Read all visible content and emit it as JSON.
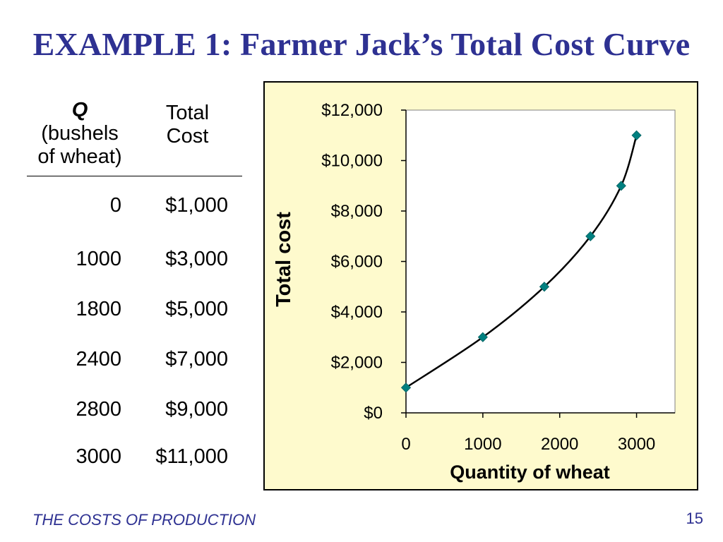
{
  "title": "EXAMPLE 1:  Farmer Jack’s Total Cost Curve",
  "table": {
    "header_q_symbol": "Q",
    "header_q_line2": "(bushels",
    "header_q_line3": "of wheat)",
    "header_tc_line1": "Total",
    "header_tc_line2": "Cost",
    "rows": [
      {
        "q": "0",
        "tc": "$1,000"
      },
      {
        "q": "1000",
        "tc": "$3,000"
      },
      {
        "q": "1800",
        "tc": "$5,000"
      },
      {
        "q": "2400",
        "tc": "$7,000"
      },
      {
        "q": "2800",
        "tc": "$9,000"
      },
      {
        "q": "3000",
        "tc": "$11,000"
      }
    ]
  },
  "chart_data": {
    "type": "line",
    "title": "",
    "xlabel": "Quantity of wheat",
    "ylabel": "Total cost",
    "x": [
      0,
      1000,
      1800,
      2400,
      2800,
      3000
    ],
    "series": [
      {
        "values": [
          1000,
          3000,
          5000,
          7000,
          9000,
          11000
        ]
      }
    ],
    "xlim": [
      0,
      3500
    ],
    "ylim": [
      0,
      12000
    ],
    "xticks": [
      0,
      1000,
      2000,
      3000
    ],
    "xtick_labels": [
      "0",
      "1000",
      "2000",
      "3000"
    ],
    "yticks": [
      0,
      2000,
      4000,
      6000,
      8000,
      10000,
      12000
    ],
    "ytick_labels": [
      "$0",
      "$2,000",
      "$4,000",
      "$6,000",
      "$8,000",
      "$10,000",
      "$12,000"
    ],
    "grid": false,
    "marker": "diamond",
    "colors": {
      "marker": "#008080",
      "line": "#000000",
      "frame_background": "#fefacd",
      "plot_background": "#ffffff"
    }
  },
  "footer": {
    "label": "THE COSTS OF PRODUCTION",
    "page": "15"
  }
}
